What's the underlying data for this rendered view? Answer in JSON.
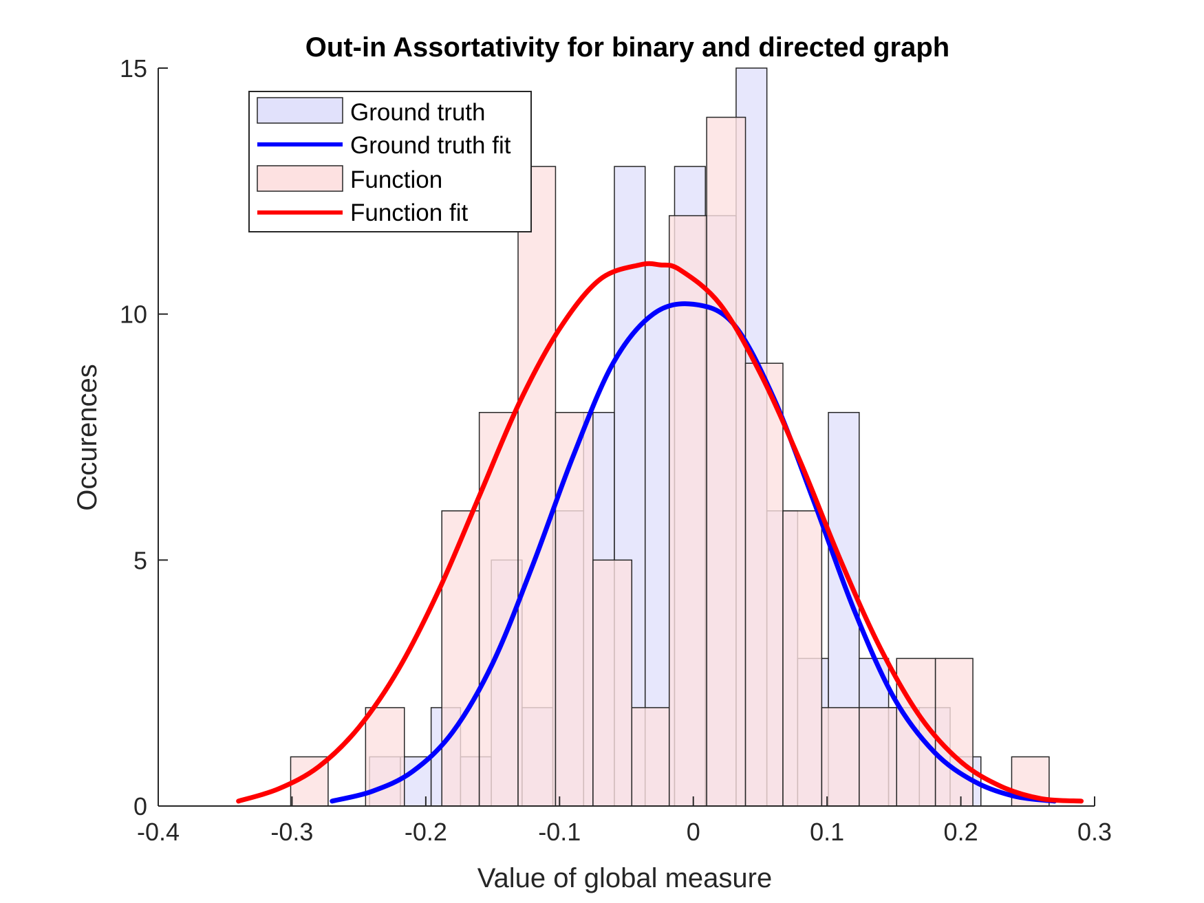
{
  "chart_data": {
    "type": "bar",
    "title": "Out-in Assortativity for binary and directed graph",
    "xlabel": "Value of global measure",
    "ylabel": "Occurences",
    "xlim": [
      -0.4,
      0.3
    ],
    "ylim": [
      0,
      15
    ],
    "xticks": [
      "-0.4",
      "-0.3",
      "-0.2",
      "-0.1",
      "0",
      "0.1",
      "0.2",
      "0.3"
    ],
    "yticks": [
      "0",
      "5",
      "10",
      "15"
    ],
    "legend_position": "top-left",
    "grid": false,
    "series": [
      {
        "name": "Ground truth",
        "kind": "histogram",
        "color": "#e1e1fb",
        "bins": [
          {
            "x0": -0.242,
            "x1": -0.219,
            "count": 1
          },
          {
            "x0": -0.219,
            "x1": -0.196,
            "count": 1
          },
          {
            "x0": -0.196,
            "x1": -0.174,
            "count": 2
          },
          {
            "x0": -0.174,
            "x1": -0.151,
            "count": 1
          },
          {
            "x0": -0.151,
            "x1": -0.128,
            "count": 5
          },
          {
            "x0": -0.128,
            "x1": -0.105,
            "count": 2
          },
          {
            "x0": -0.105,
            "x1": -0.082,
            "count": 6
          },
          {
            "x0": -0.082,
            "x1": -0.059,
            "count": 8
          },
          {
            "x0": -0.059,
            "x1": -0.036,
            "count": 13
          },
          {
            "x0": -0.036,
            "x1": -0.014,
            "count": 11
          },
          {
            "x0": -0.014,
            "x1": 0.009,
            "count": 13
          },
          {
            "x0": 0.009,
            "x1": 0.032,
            "count": 12
          },
          {
            "x0": 0.032,
            "x1": 0.055,
            "count": 15
          },
          {
            "x0": 0.055,
            "x1": 0.078,
            "count": 6
          },
          {
            "x0": 0.078,
            "x1": 0.101,
            "count": 3
          },
          {
            "x0": 0.101,
            "x1": 0.124,
            "count": 8
          },
          {
            "x0": 0.124,
            "x1": 0.146,
            "count": 3
          },
          {
            "x0": 0.146,
            "x1": 0.169,
            "count": 2
          },
          {
            "x0": 0.169,
            "x1": 0.192,
            "count": 2
          },
          {
            "x0": 0.192,
            "x1": 0.215,
            "count": 1
          }
        ]
      },
      {
        "name": "Ground truth fit",
        "kind": "line",
        "color": "#0000ff",
        "x": [
          -0.27,
          -0.24,
          -0.21,
          -0.18,
          -0.15,
          -0.12,
          -0.09,
          -0.06,
          -0.03,
          0.0,
          0.03,
          0.06,
          0.09,
          0.12,
          0.15,
          0.18,
          0.21,
          0.24,
          0.27
        ],
        "y": [
          0.1,
          0.3,
          0.7,
          1.5,
          2.9,
          4.9,
          7.1,
          9.0,
          10.0,
          10.2,
          9.8,
          8.3,
          6.2,
          4.0,
          2.2,
          1.1,
          0.5,
          0.2,
          0.1
        ]
      },
      {
        "name": "Function",
        "kind": "histogram",
        "color": "#fde1e1",
        "bins": [
          {
            "x0": -0.301,
            "x1": -0.273,
            "count": 1
          },
          {
            "x0": -0.245,
            "x1": -0.216,
            "count": 2
          },
          {
            "x0": -0.188,
            "x1": -0.16,
            "count": 6
          },
          {
            "x0": -0.16,
            "x1": -0.131,
            "count": 8
          },
          {
            "x0": -0.131,
            "x1": -0.103,
            "count": 13
          },
          {
            "x0": -0.103,
            "x1": -0.075,
            "count": 8
          },
          {
            "x0": -0.075,
            "x1": -0.046,
            "count": 5
          },
          {
            "x0": -0.046,
            "x1": -0.018,
            "count": 2
          },
          {
            "x0": -0.018,
            "x1": 0.01,
            "count": 12
          },
          {
            "x0": 0.01,
            "x1": 0.039,
            "count": 14
          },
          {
            "x0": 0.039,
            "x1": 0.067,
            "count": 9
          },
          {
            "x0": 0.067,
            "x1": 0.096,
            "count": 6
          },
          {
            "x0": 0.096,
            "x1": 0.124,
            "count": 2
          },
          {
            "x0": 0.124,
            "x1": 0.152,
            "count": 2
          },
          {
            "x0": 0.152,
            "x1": 0.181,
            "count": 3
          },
          {
            "x0": 0.181,
            "x1": 0.209,
            "count": 3
          },
          {
            "x0": 0.209,
            "x1": 0.238,
            "count": 0
          },
          {
            "x0": 0.238,
            "x1": 0.266,
            "count": 1
          }
        ]
      },
      {
        "name": "Function fit",
        "kind": "line",
        "color": "#ff0000",
        "x": [
          -0.34,
          -0.31,
          -0.28,
          -0.25,
          -0.22,
          -0.19,
          -0.16,
          -0.13,
          -0.1,
          -0.07,
          -0.04,
          -0.025,
          -0.01,
          0.02,
          0.05,
          0.08,
          0.11,
          0.14,
          0.17,
          0.2,
          0.23,
          0.26,
          0.29
        ],
        "y": [
          0.1,
          0.35,
          0.8,
          1.6,
          2.8,
          4.4,
          6.3,
          8.2,
          9.7,
          10.7,
          11.0,
          11.0,
          10.9,
          10.2,
          8.8,
          7.0,
          5.0,
          3.2,
          1.8,
          0.9,
          0.4,
          0.15,
          0.1
        ]
      }
    ]
  }
}
